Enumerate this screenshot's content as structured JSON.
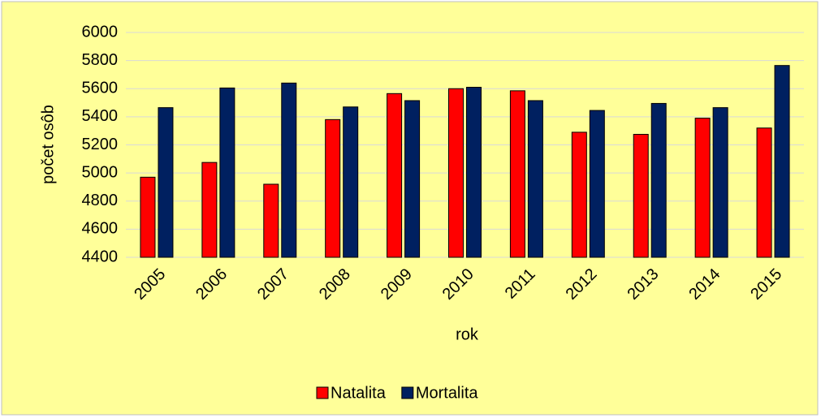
{
  "chart_data": {
    "type": "bar",
    "x_label": "rok",
    "y_label": "počet osôb",
    "categories": [
      "2005",
      "2006",
      "2007",
      "2008",
      "2009",
      "2010",
      "2011",
      "2012",
      "2013",
      "2014",
      "2015"
    ],
    "series": [
      {
        "name": "Natalita",
        "color": "#ff0000",
        "values": [
          4970,
          5075,
          4920,
          5380,
          5565,
          5600,
          5585,
          5290,
          5275,
          5390,
          5320
        ]
      },
      {
        "name": "Mortalita",
        "color": "#002060",
        "values": [
          5465,
          5605,
          5640,
          5470,
          5515,
          5610,
          5515,
          5445,
          5495,
          5465,
          5765
        ]
      }
    ],
    "ylim": [
      4400,
      6000
    ],
    "yticks": [
      4400,
      4600,
      4800,
      5000,
      5200,
      5400,
      5600,
      5800,
      6000
    ],
    "grid": true,
    "legend": "bottom"
  }
}
